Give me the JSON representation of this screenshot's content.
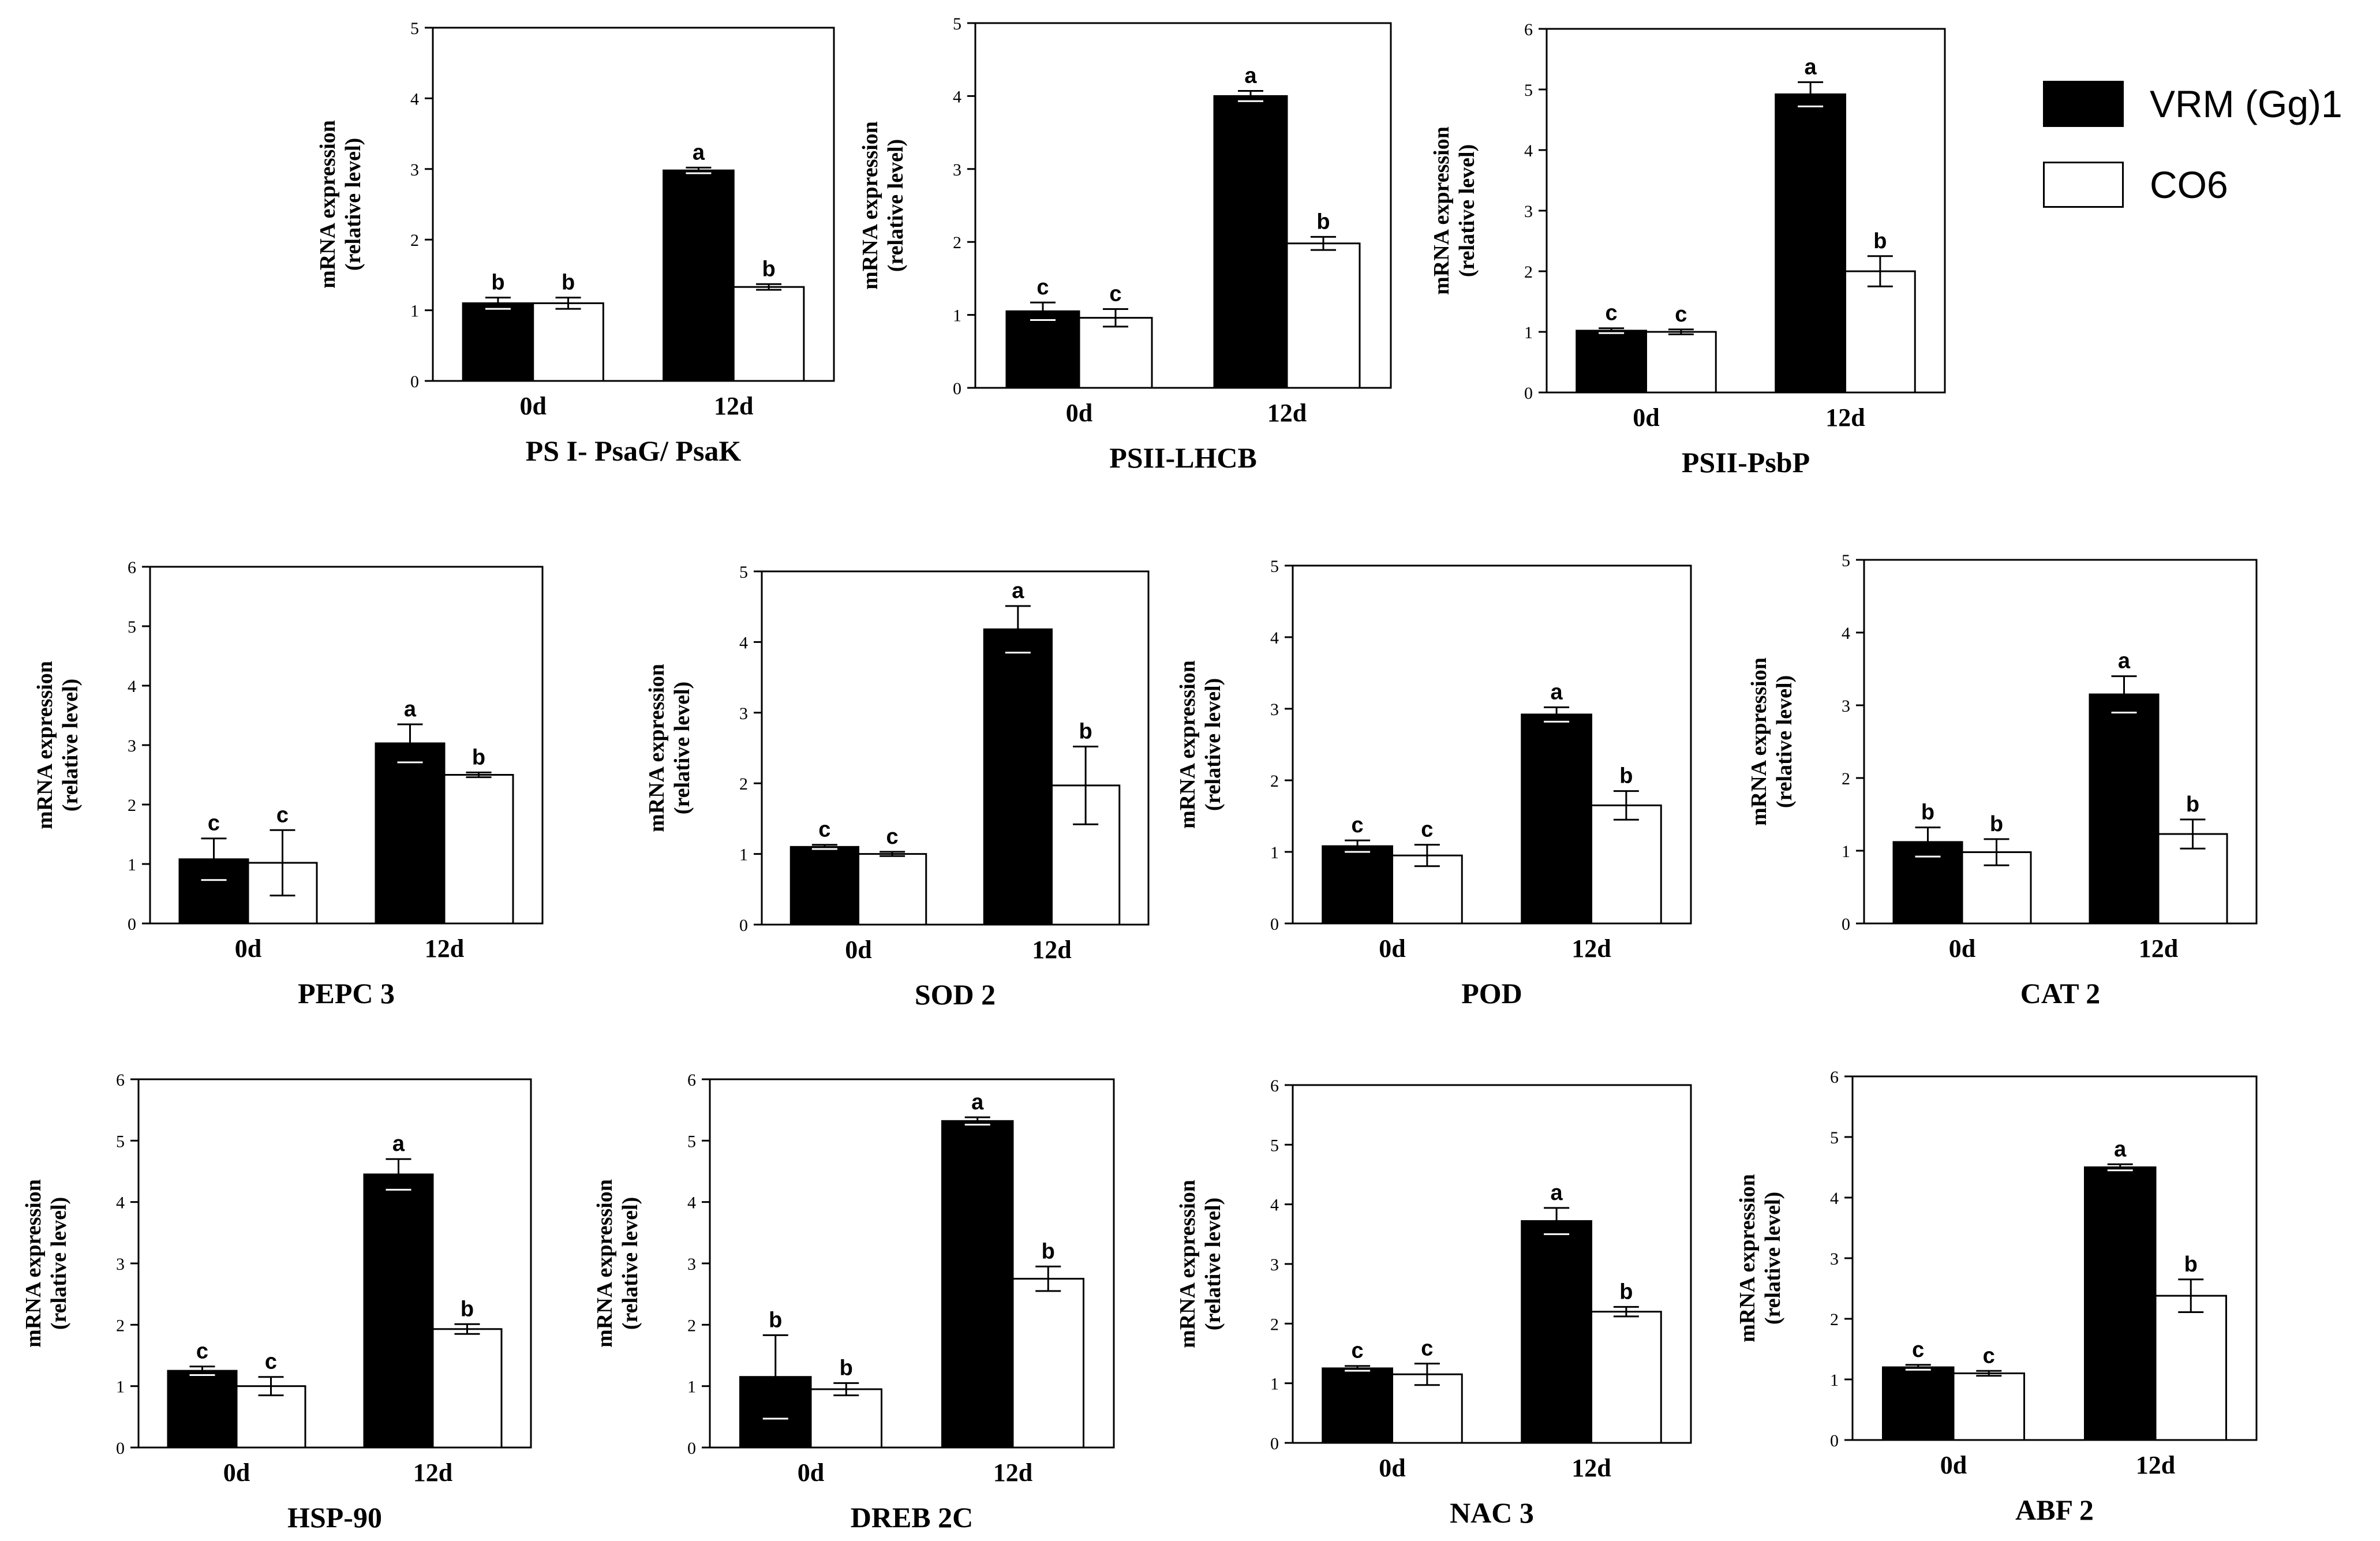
{
  "colors": {
    "vrm": "#000000",
    "co6": "#ffffff",
    "axis": "#000000"
  },
  "legend": {
    "series": [
      {
        "name": "VRM (Gg)1",
        "color": "#000000"
      },
      {
        "name": "CO6",
        "color": "#ffffff"
      }
    ]
  },
  "chart_data": [
    {
      "type": "bar",
      "title": "PS I- PsaG/ PsaK",
      "ylabel": "mRNA expression (relative level)",
      "ylabel_lines": [
        "mRNA expression",
        "(relative level)"
      ],
      "ylim": [
        0,
        5
      ],
      "yticks": [
        "0",
        "1",
        "2",
        "3",
        "4",
        "5"
      ],
      "categories": [
        "0d",
        "12d"
      ],
      "series": [
        {
          "name": "VRM (Gg)1",
          "values": [
            1.1,
            2.98
          ],
          "errors": [
            0.08,
            0.04
          ],
          "letters": [
            "b",
            "a"
          ]
        },
        {
          "name": "CO6",
          "values": [
            1.1,
            1.33
          ],
          "errors": [
            0.08,
            0.04
          ],
          "letters": [
            "b",
            "b"
          ]
        }
      ]
    },
    {
      "type": "bar",
      "title": "PSII-LHCB",
      "ylabel": "mRNA expression (relative level)",
      "ylabel_lines": [
        "mRNA expression",
        "(relative level)"
      ],
      "ylim": [
        0,
        5
      ],
      "yticks": [
        "0",
        "1",
        "2",
        "3",
        "4",
        "5"
      ],
      "categories": [
        "0d",
        "12d"
      ],
      "series": [
        {
          "name": "VRM (Gg)1",
          "values": [
            1.05,
            4.0
          ],
          "errors": [
            0.12,
            0.07
          ],
          "letters": [
            "c",
            "a"
          ]
        },
        {
          "name": "CO6",
          "values": [
            0.96,
            1.98
          ],
          "errors": [
            0.12,
            0.09
          ],
          "letters": [
            "c",
            "b"
          ]
        }
      ]
    },
    {
      "type": "bar",
      "title": "PSII-PsbP",
      "ylabel": "mRNA expression (relative level)",
      "ylabel_lines": [
        "mRNA expression",
        "(relative level)"
      ],
      "ylim": [
        0,
        6
      ],
      "yticks": [
        "0",
        "1",
        "2",
        "3",
        "4",
        "5",
        "6"
      ],
      "categories": [
        "0d",
        "12d"
      ],
      "series": [
        {
          "name": "VRM (Gg)1",
          "values": [
            1.02,
            4.92
          ],
          "errors": [
            0.04,
            0.2
          ],
          "letters": [
            "c",
            "a"
          ]
        },
        {
          "name": "CO6",
          "values": [
            1.0,
            2.0
          ],
          "errors": [
            0.04,
            0.25
          ],
          "letters": [
            "c",
            "b"
          ]
        }
      ]
    },
    {
      "type": "bar",
      "title": "PEPC 3",
      "ylabel": "mRNA expression (relative level)",
      "ylabel_lines": [
        "mRNA expression",
        "(relative level)"
      ],
      "ylim": [
        0,
        6
      ],
      "yticks": [
        "0",
        "1",
        "2",
        "3",
        "4",
        "5",
        "6"
      ],
      "categories": [
        "0d",
        "12d"
      ],
      "series": [
        {
          "name": "VRM (Gg)1",
          "values": [
            1.08,
            3.03
          ],
          "errors": [
            0.35,
            0.32
          ],
          "letters": [
            "c",
            "a"
          ]
        },
        {
          "name": "CO6",
          "values": [
            1.02,
            2.5
          ],
          "errors": [
            0.55,
            0.04
          ],
          "letters": [
            "c",
            "b"
          ]
        }
      ]
    },
    {
      "type": "bar",
      "title": "SOD 2",
      "ylabel": "mRNA expression (relative level)",
      "ylabel_lines": [
        "mRNA expression",
        "(relative level)"
      ],
      "ylim": [
        0,
        5
      ],
      "yticks": [
        "0",
        "1",
        "2",
        "3",
        "4",
        "5"
      ],
      "categories": [
        "0d",
        "12d"
      ],
      "series": [
        {
          "name": "VRM (Gg)1",
          "values": [
            1.1,
            4.18
          ],
          "errors": [
            0.03,
            0.33
          ],
          "letters": [
            "c",
            "a"
          ]
        },
        {
          "name": "CO6",
          "values": [
            1.0,
            1.97
          ],
          "errors": [
            0.03,
            0.55
          ],
          "letters": [
            "c",
            "b"
          ]
        }
      ]
    },
    {
      "type": "bar",
      "title": "POD",
      "ylabel": "mRNA expression (relative level)",
      "ylabel_lines": [
        "mRNA expression",
        "(relative level)"
      ],
      "ylim": [
        0,
        5
      ],
      "yticks": [
        "0",
        "1",
        "2",
        "3",
        "4",
        "5"
      ],
      "categories": [
        "0d",
        "12d"
      ],
      "series": [
        {
          "name": "VRM (Gg)1",
          "values": [
            1.08,
            2.92
          ],
          "errors": [
            0.08,
            0.1
          ],
          "letters": [
            "c",
            "a"
          ]
        },
        {
          "name": "CO6",
          "values": [
            0.95,
            1.65
          ],
          "errors": [
            0.15,
            0.2
          ],
          "letters": [
            "c",
            "b"
          ]
        }
      ]
    },
    {
      "type": "bar",
      "title": "CAT 2",
      "ylabel": "mRNA expression (relative level)",
      "ylabel_lines": [
        "mRNA expression",
        "(relative level)"
      ],
      "ylim": [
        0,
        5
      ],
      "yticks": [
        "0",
        "1",
        "2",
        "3",
        "4",
        "5"
      ],
      "categories": [
        "0d",
        "12d"
      ],
      "series": [
        {
          "name": "VRM (Gg)1",
          "values": [
            1.12,
            3.15
          ],
          "errors": [
            0.2,
            0.25
          ],
          "letters": [
            "b",
            "a"
          ]
        },
        {
          "name": "CO6",
          "values": [
            0.98,
            1.23
          ],
          "errors": [
            0.18,
            0.2
          ],
          "letters": [
            "b",
            "b"
          ]
        }
      ]
    },
    {
      "type": "bar",
      "title": "HSP-90",
      "ylabel": "mRNA expression (relative level)",
      "ylabel_lines": [
        "mRNA expression",
        "(relative level)"
      ],
      "ylim": [
        0,
        6
      ],
      "yticks": [
        "0",
        "1",
        "2",
        "3",
        "4",
        "5",
        "6"
      ],
      "categories": [
        "0d",
        "12d"
      ],
      "series": [
        {
          "name": "VRM (Gg)1",
          "values": [
            1.25,
            4.45
          ],
          "errors": [
            0.07,
            0.25
          ],
          "letters": [
            "c",
            "a"
          ]
        },
        {
          "name": "CO6",
          "values": [
            1.0,
            1.93
          ],
          "errors": [
            0.15,
            0.08
          ],
          "letters": [
            "c",
            "b"
          ]
        }
      ]
    },
    {
      "type": "bar",
      "title": "DREB 2C",
      "ylabel": "mRNA expression (relative level)",
      "ylabel_lines": [
        "mRNA expression",
        "(relative level)"
      ],
      "ylim": [
        0,
        6
      ],
      "yticks": [
        "0",
        "1",
        "2",
        "3",
        "4",
        "5",
        "6"
      ],
      "categories": [
        "0d",
        "12d"
      ],
      "series": [
        {
          "name": "VRM (Gg)1",
          "values": [
            1.15,
            5.32
          ],
          "errors": [
            0.68,
            0.06
          ],
          "letters": [
            "b",
            "a"
          ]
        },
        {
          "name": "CO6",
          "values": [
            0.95,
            2.75
          ],
          "errors": [
            0.1,
            0.2
          ],
          "letters": [
            "b",
            "b"
          ]
        }
      ]
    },
    {
      "type": "bar",
      "title": "NAC 3",
      "ylabel": "mRNA expression (relative level)",
      "ylabel_lines": [
        "mRNA expression",
        "(relative level)"
      ],
      "ylim": [
        0,
        6
      ],
      "yticks": [
        "0",
        "1",
        "2",
        "3",
        "4",
        "5",
        "6"
      ],
      "categories": [
        "0d",
        "12d"
      ],
      "series": [
        {
          "name": "VRM (Gg)1",
          "values": [
            1.25,
            3.72
          ],
          "errors": [
            0.04,
            0.22
          ],
          "letters": [
            "c",
            "a"
          ]
        },
        {
          "name": "CO6",
          "values": [
            1.15,
            2.2
          ],
          "errors": [
            0.18,
            0.08
          ],
          "letters": [
            "c",
            "b"
          ]
        }
      ]
    },
    {
      "type": "bar",
      "title": "ABF 2",
      "ylabel": "mRNA expression (relative level)",
      "ylabel_lines": [
        "mRNA expression",
        "(relative level)"
      ],
      "ylim": [
        0,
        6
      ],
      "yticks": [
        "0",
        "1",
        "2",
        "3",
        "4",
        "5",
        "6"
      ],
      "categories": [
        "0d",
        "12d"
      ],
      "series": [
        {
          "name": "VRM (Gg)1",
          "values": [
            1.2,
            4.5
          ],
          "errors": [
            0.04,
            0.05
          ],
          "letters": [
            "c",
            "a"
          ]
        },
        {
          "name": "CO6",
          "values": [
            1.1,
            2.38
          ],
          "errors": [
            0.04,
            0.27
          ],
          "letters": [
            "c",
            "b"
          ]
        }
      ]
    }
  ]
}
